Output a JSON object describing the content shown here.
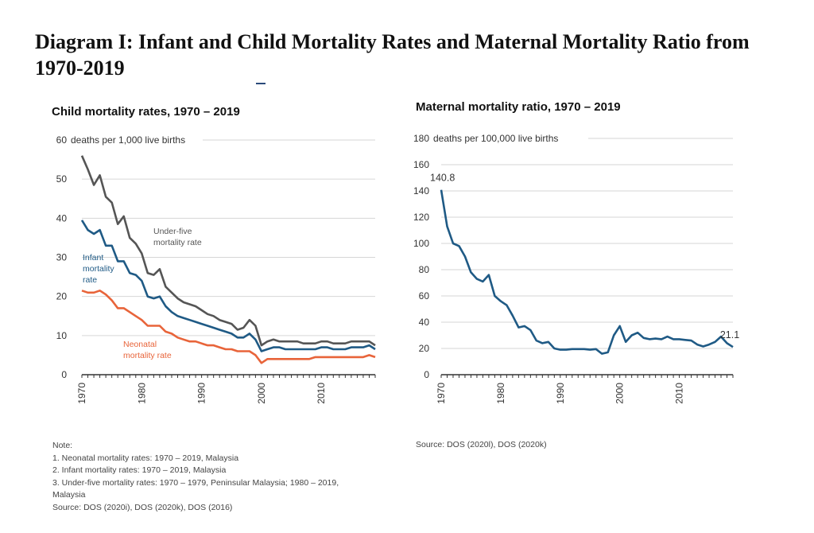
{
  "page": {
    "title": "Diagram I: Infant and Child Mortality Rates and Maternal Mortality Ratio from 1970-2019"
  },
  "colors": {
    "under_five": "#555555",
    "infant": "#1f5a85",
    "neonatal": "#e8643a",
    "maternal": "#1f5a85",
    "grid": "#d6d6d6",
    "axis": "#333333",
    "text": "#333333"
  },
  "notes": {
    "heading": "Note:",
    "items": [
      "1. Neonatal mortality rates: 1970 – 2019, Malaysia",
      "2. Infant mortality rates: 1970 – 2019, Malaysia",
      "3. Under-five mortality rates: 1970 – 1979, Peninsular Malaysia; 1980 – 2019,",
      "Malaysia"
    ],
    "source": "Source: DOS (2020i), DOS (2020k), DOS (2016)"
  },
  "right_source": "Source: DOS (2020l), DOS (2020k)",
  "chart_data": [
    {
      "type": "line",
      "title": "Child mortality rates, 1970 – 2019",
      "ylabel": "deaths per 1,000 live births",
      "xlim": [
        1970,
        2019
      ],
      "ylim": [
        0,
        60
      ],
      "yticks": [
        0,
        10,
        20,
        30,
        40,
        50,
        60
      ],
      "xticks": [
        1970,
        1980,
        1990,
        2000,
        2010
      ],
      "grid": true,
      "x": [
        1970,
        1971,
        1972,
        1973,
        1974,
        1975,
        1976,
        1977,
        1978,
        1979,
        1980,
        1981,
        1982,
        1983,
        1984,
        1985,
        1986,
        1987,
        1988,
        1989,
        1990,
        1991,
        1992,
        1993,
        1994,
        1995,
        1996,
        1997,
        1998,
        1999,
        2000,
        2001,
        2002,
        2003,
        2004,
        2005,
        2006,
        2007,
        2008,
        2009,
        2010,
        2011,
        2012,
        2013,
        2014,
        2015,
        2016,
        2017,
        2018,
        2019
      ],
      "series": [
        {
          "name": "Under-five mortality rate",
          "label_lines": [
            "Under-five",
            "mortality rate"
          ],
          "color_key": "under_five",
          "values": [
            56,
            52.5,
            48.5,
            51,
            45.5,
            44,
            38.5,
            40.5,
            35,
            33.5,
            31,
            26,
            25.5,
            27,
            22.5,
            21,
            19.5,
            18.5,
            18,
            17.5,
            16.5,
            15.5,
            15,
            14,
            13.5,
            13,
            11.5,
            12,
            14,
            12.5,
            7.5,
            8.5,
            9,
            8.5,
            8.5,
            8.5,
            8.5,
            8,
            8,
            8,
            8.5,
            8.5,
            8,
            8,
            8,
            8.5,
            8.5,
            8.5,
            8.5,
            7.5
          ]
        },
        {
          "name": "Infant mortality rate",
          "label_lines": [
            "Infant",
            "mortality",
            "rate"
          ],
          "color_key": "infant",
          "values": [
            39.5,
            37,
            36,
            37,
            33,
            33,
            29,
            29,
            26,
            25.5,
            24,
            20,
            19.5,
            20,
            17.5,
            16,
            15,
            14.5,
            14,
            13.5,
            13,
            12.5,
            12,
            11.5,
            11,
            10.5,
            9.5,
            9.5,
            10.5,
            9,
            6,
            6.5,
            7,
            7,
            6.5,
            6.5,
            6.5,
            6.5,
            6.5,
            6.5,
            7,
            7,
            6.5,
            6.5,
            6.5,
            7,
            7,
            7,
            7.5,
            6.5
          ]
        },
        {
          "name": "Neonatal mortality rate",
          "label_lines": [
            "Neonatal",
            "mortality rate"
          ],
          "color_key": "neonatal",
          "values": [
            21.5,
            21,
            21,
            21.5,
            20.5,
            19,
            17,
            17,
            16,
            15,
            14,
            12.5,
            12.5,
            12.5,
            11,
            10.5,
            9.5,
            9,
            8.5,
            8.5,
            8,
            7.5,
            7.5,
            7,
            6.5,
            6.5,
            6,
            6,
            6,
            5,
            3,
            4,
            4,
            4,
            4,
            4,
            4,
            4,
            4,
            4.5,
            4.5,
            4.5,
            4.5,
            4.5,
            4.5,
            4.5,
            4.5,
            4.5,
            5,
            4.5
          ]
        }
      ]
    },
    {
      "type": "line",
      "title": "Maternal mortality ratio, 1970 – 2019",
      "ylabel": "deaths per 100,000 live births",
      "xlim": [
        1970,
        2019
      ],
      "ylim": [
        0,
        180
      ],
      "yticks": [
        0,
        20,
        40,
        60,
        80,
        100,
        120,
        140,
        160,
        180
      ],
      "xticks": [
        1970,
        1980,
        1990,
        2000,
        2010
      ],
      "grid": true,
      "x": [
        1970,
        1971,
        1972,
        1973,
        1974,
        1975,
        1976,
        1977,
        1978,
        1979,
        1980,
        1981,
        1982,
        1983,
        1984,
        1985,
        1986,
        1987,
        1988,
        1989,
        1990,
        1991,
        1992,
        1993,
        1994,
        1995,
        1996,
        1997,
        1998,
        1999,
        2000,
        2001,
        2002,
        2003,
        2004,
        2005,
        2006,
        2007,
        2008,
        2009,
        2010,
        2011,
        2012,
        2013,
        2014,
        2015,
        2016,
        2017,
        2018,
        2019
      ],
      "series": [
        {
          "name": "Maternal mortality ratio",
          "color_key": "maternal",
          "values": [
            140.8,
            113,
            100,
            98,
            90,
            78,
            73,
            71,
            76,
            60,
            56,
            53,
            45,
            36,
            37,
            34,
            26,
            24,
            25,
            20,
            19,
            19,
            19.5,
            19.5,
            19.5,
            19,
            19.5,
            16,
            17,
            30,
            37,
            25,
            30,
            32,
            28,
            27,
            27.5,
            27,
            29,
            27,
            27,
            26.5,
            26,
            23,
            21.5,
            23,
            25,
            29,
            24,
            21.1
          ]
        }
      ],
      "annotations": [
        {
          "x": 1970,
          "y": 140.8,
          "text": "140.8"
        },
        {
          "x": 2019,
          "y": 21.1,
          "text": "21.1"
        }
      ]
    }
  ]
}
